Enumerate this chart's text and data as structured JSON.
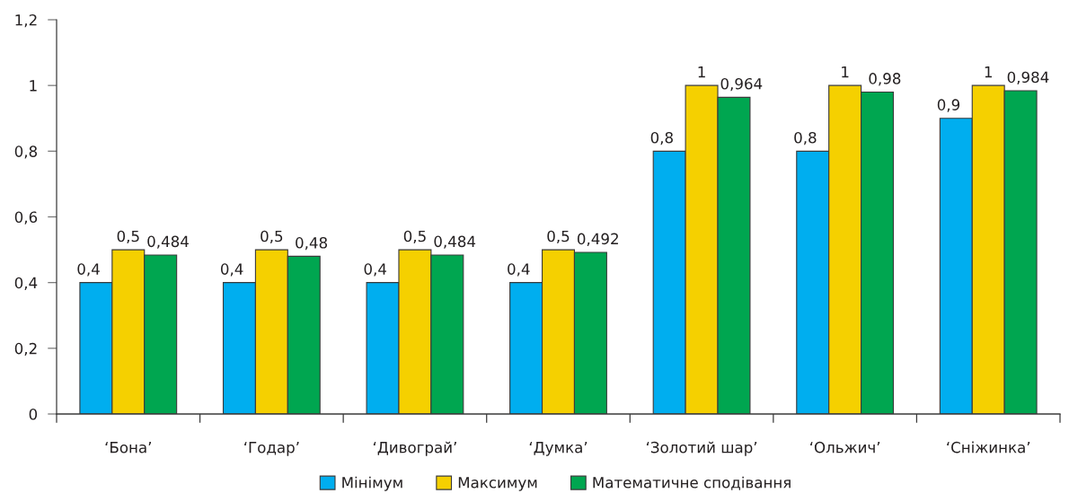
{
  "chart_data": {
    "type": "bar",
    "categories": [
      "‘Бона’",
      "‘Годар’",
      "‘Дивограй’",
      "‘Думка’",
      "‘Золотий шар’",
      "‘Ольжич’",
      "‘Сніжинка’"
    ],
    "series": [
      {
        "name": "Мінімум",
        "color": "#00aeef",
        "values": [
          0.4,
          0.4,
          0.4,
          0.4,
          0.8,
          0.8,
          0.9
        ],
        "value_labels": [
          "0,4",
          "0,4",
          "0,4",
          "0,4",
          "0,8",
          "0,8",
          "0,9"
        ]
      },
      {
        "name": "Максимум",
        "color": "#f5d000",
        "values": [
          0.5,
          0.5,
          0.5,
          0.5,
          1,
          1,
          1
        ],
        "value_labels": [
          "0,5",
          "0,5",
          "0,5",
          "0,5",
          "1",
          "1",
          "1"
        ]
      },
      {
        "name": "Математичне сподівання",
        "color": "#00a650",
        "values": [
          0.484,
          0.48,
          0.484,
          0.492,
          0.964,
          0.98,
          0.984
        ],
        "value_labels": [
          "0,484",
          "0,48",
          "0,484",
          "0,492",
          "0,964",
          "0,98",
          "0,984"
        ]
      }
    ],
    "ylim": [
      0,
      1.2
    ],
    "yticks": [
      0,
      {
        "value": 0.2,
        "label": "0,2"
      },
      {
        "value": 0.4,
        "label": "0,4"
      },
      {
        "value": 0.6,
        "label": "0,6"
      },
      {
        "value": 0.8,
        "label": "0,8"
      },
      1,
      {
        "value": 1.2,
        "label": "1,2"
      }
    ],
    "legend": "bottom"
  }
}
